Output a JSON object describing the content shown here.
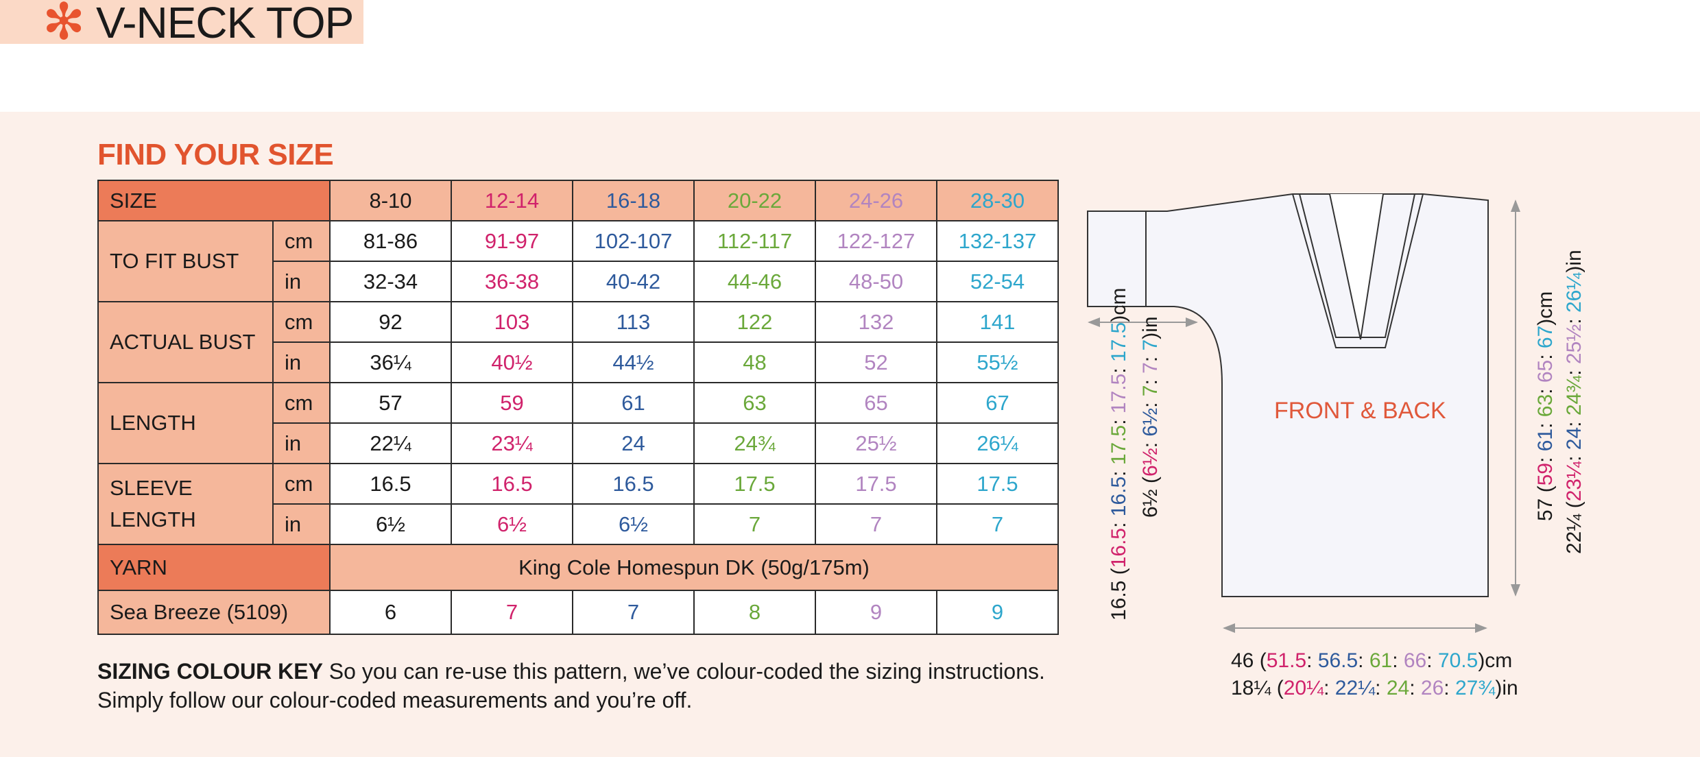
{
  "header": {
    "title": "V-NECK TOP",
    "star": "✻"
  },
  "section_title": "FIND YOUR SIZE",
  "colors": {
    "size1": "#1a1a1a",
    "size2": "#d0226b",
    "size3": "#2e5a9c",
    "size4": "#6aa83a",
    "size5": "#b184c0",
    "size6": "#2da6cc",
    "accent": "#e1542e"
  },
  "table": {
    "size_label": "SIZE",
    "sizes": [
      "8-10",
      "12-14",
      "16-18",
      "20-22",
      "24-26",
      "28-30"
    ],
    "rows": [
      {
        "label": "TO FIT BUST",
        "units": [
          {
            "unit": "cm",
            "values": [
              "81-86",
              "91-97",
              "102-107",
              "112-117",
              "122-127",
              "132-137"
            ]
          },
          {
            "unit": "in",
            "values": [
              "32-34",
              "36-38",
              "40-42",
              "44-46",
              "48-50",
              "52-54"
            ]
          }
        ]
      },
      {
        "label": "ACTUAL BUST",
        "units": [
          {
            "unit": "cm",
            "values": [
              "92",
              "103",
              "113",
              "122",
              "132",
              "141"
            ]
          },
          {
            "unit": "in",
            "values": [
              "36¼",
              "40½",
              "44½",
              "48",
              "52",
              "55½"
            ]
          }
        ]
      },
      {
        "label": "LENGTH",
        "units": [
          {
            "unit": "cm",
            "values": [
              "57",
              "59",
              "61",
              "63",
              "65",
              "67"
            ]
          },
          {
            "unit": "in",
            "values": [
              "22¼",
              "23¼",
              "24",
              "24¾",
              "25½",
              "26¼"
            ]
          }
        ]
      },
      {
        "label": "SLEEVE LENGTH",
        "label_line1": "SLEEVE",
        "label_line2": "LENGTH",
        "units": [
          {
            "unit": "cm",
            "values": [
              "16.5",
              "16.5",
              "16.5",
              "17.5",
              "17.5",
              "17.5"
            ]
          },
          {
            "unit": "in",
            "values": [
              "6½",
              "6½",
              "6½",
              "7",
              "7",
              "7"
            ]
          }
        ]
      }
    ],
    "yarn_label": "YARN",
    "yarn_value": "King Cole Homespun DK (50g/175m)",
    "shade_label": "Sea Breeze (5109)",
    "shade_values": [
      "6",
      "7",
      "7",
      "8",
      "9",
      "9"
    ]
  },
  "key": {
    "title": "SIZING COLOUR KEY",
    "text": " So you can re-use this pattern, we’ve colour-coded the sizing instructions. Simply follow our colour-coded measurements and you’re off."
  },
  "diagram": {
    "label": "FRONT & BACK",
    "sleeve_cm": {
      "first": "16.5",
      "others": [
        "16.5",
        "16.5",
        "17.5",
        "17.5",
        "17.5"
      ],
      "unit": "cm"
    },
    "sleeve_in": {
      "first": "6½",
      "others": [
        "6½",
        "6½",
        "7",
        "7",
        "7"
      ],
      "unit": "in"
    },
    "length_cm": {
      "first": "57",
      "others": [
        "59",
        "61",
        "63",
        "65",
        "67"
      ],
      "unit": "cm"
    },
    "length_in": {
      "first": "22¼",
      "others": [
        "23¼",
        "24",
        "24¾",
        "25½",
        "26¼"
      ],
      "unit": "in"
    },
    "width_cm": {
      "first": "46",
      "others": [
        "51.5",
        "56.5",
        "61",
        "66",
        "70.5"
      ],
      "unit": "cm"
    },
    "width_in": {
      "first": "18¼",
      "others": [
        "20¼",
        "22¼",
        "24",
        "26",
        "27¾"
      ],
      "unit": "in"
    }
  }
}
